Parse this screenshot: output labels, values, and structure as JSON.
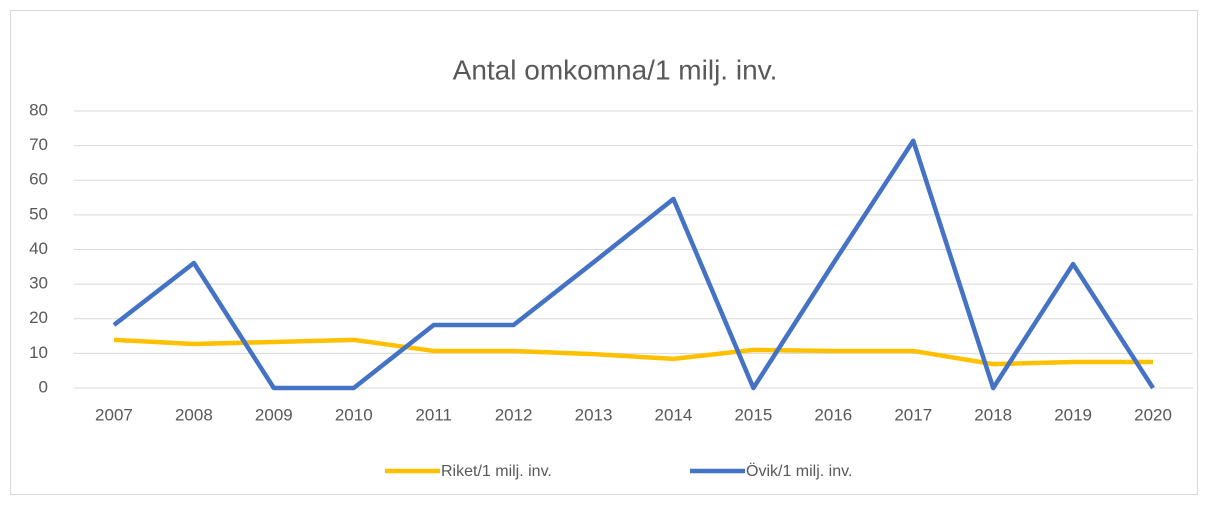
{
  "chart_data": {
    "type": "line",
    "title": "Antal omkomna/1 milj. inv.",
    "categories": [
      "2007",
      "2008",
      "2009",
      "2010",
      "2011",
      "2012",
      "2013",
      "2014",
      "2015",
      "2016",
      "2017",
      "2018",
      "2019",
      "2020"
    ],
    "series": [
      {
        "name": "Riket/1 milj. inv.",
        "color": "#ffc000",
        "values": [
          13.9,
          12.7,
          13.3,
          13.9,
          10.7,
          10.7,
          9.8,
          8.4,
          11.0,
          10.7,
          10.7,
          6.9,
          7.5,
          7.5
        ]
      },
      {
        "name": "Övik/1 milj. inv.",
        "color": "#4472c4",
        "values": [
          18.2,
          36.1,
          0,
          0,
          18.2,
          18.2,
          36.3,
          54.6,
          0,
          36,
          71.4,
          0,
          35.8,
          0
        ]
      }
    ],
    "ylim": [
      0,
      80
    ],
    "yticks": [
      0,
      10,
      20,
      30,
      40,
      50,
      60,
      70,
      80
    ],
    "grid": true,
    "legend": "bottom"
  }
}
